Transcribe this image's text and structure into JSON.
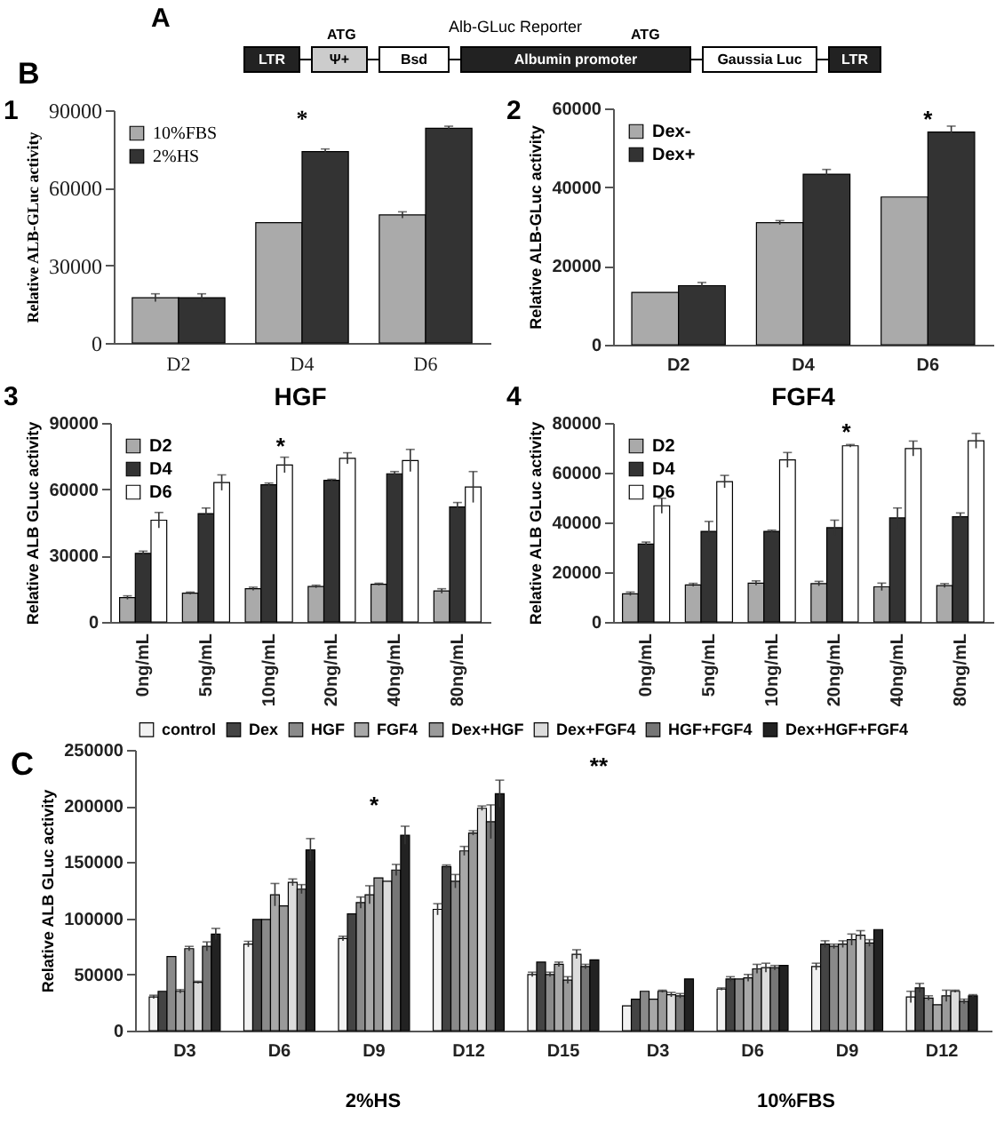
{
  "chart_data": [
    {
      "type": "other",
      "annotations": [
        "A",
        "B",
        "Alb-GLuc Reporter",
        "ATG",
        "ATG",
        "LTR",
        "Ψ+",
        "Bsd",
        "Albumin promoter",
        "Gaussia Luc",
        "LTR"
      ]
    },
    {
      "type": "bar",
      "ylabel": "Relative ALB-GLuc activity",
      "categories": [
        "D2",
        "D4",
        "D6"
      ],
      "ylim": [
        0,
        90000
      ],
      "yticks": [
        0,
        30000,
        60000,
        90000
      ],
      "legend": "top left",
      "annotations": [
        "1",
        "*"
      ],
      "series": [
        {
          "name": "10%FBS",
          "color": "#aaaaaa",
          "values": [
            17500,
            46500,
            49500
          ],
          "errors": [
            1500,
            null,
            1200
          ]
        },
        {
          "name": "2%HS",
          "color": "#333333",
          "values": [
            17500,
            74000,
            83000
          ],
          "errors": [
            1500,
            1000,
            800
          ]
        }
      ]
    },
    {
      "type": "bar",
      "ylabel": "Relative ALB-GLuc activity",
      "categories": [
        "D2",
        "D4",
        "D6"
      ],
      "ylim": [
        0,
        60000
      ],
      "yticks": [
        0,
        20000,
        40000,
        60000
      ],
      "legend": "top left",
      "annotations": [
        "2",
        "*"
      ],
      "series": [
        {
          "name": "Dex-",
          "color": "#aaaaaa",
          "values": [
            13300,
            31000,
            37500
          ],
          "errors": [
            null,
            500,
            null
          ]
        },
        {
          "name": "Dex+",
          "color": "#333333",
          "values": [
            15000,
            43300,
            54000
          ],
          "errors": [
            800,
            1200,
            1500
          ]
        }
      ]
    },
    {
      "type": "bar",
      "title": "HGF",
      "ylabel": "Relative ALB GLuc activity",
      "categories": [
        "0ng/mL",
        "5ng/mL",
        "10ng/mL",
        "20ng/mL",
        "40ng/mL",
        "80ng/mL"
      ],
      "ylim": [
        0,
        90000
      ],
      "yticks": [
        0,
        30000,
        60000,
        90000
      ],
      "legend": "top left",
      "annotations": [
        "3",
        "*"
      ],
      "series": [
        {
          "name": "D2",
          "color": "#aaaaaa",
          "values": [
            11000,
            13000,
            15000,
            16000,
            17000,
            14000
          ],
          "errors": [
            800,
            500,
            700,
            600,
            500,
            1000
          ]
        },
        {
          "name": "D4",
          "color": "#333333",
          "values": [
            31000,
            49000,
            62000,
            64000,
            67000,
            52000
          ],
          "errors": [
            1000,
            2500,
            800,
            500,
            1000,
            2000
          ]
        },
        {
          "name": "D6",
          "color": "#ffffff",
          "values": [
            46000,
            63000,
            71000,
            74000,
            73000,
            61000
          ],
          "errors": [
            3500,
            3500,
            3500,
            2500,
            5000,
            7000
          ]
        }
      ]
    },
    {
      "type": "bar",
      "title": "FGF4",
      "ylabel": "Relative ALB GLuc activity",
      "categories": [
        "0ng/mL",
        "5ng/mL",
        "10ng/mL",
        "20ng/mL",
        "40ng/mL",
        "80ng/mL"
      ],
      "ylim": [
        0,
        80000
      ],
      "yticks": [
        0,
        20000,
        40000,
        60000,
        80000
      ],
      "legend": "top left",
      "annotations": [
        "4",
        "*"
      ],
      "series": [
        {
          "name": "D2",
          "color": "#aaaaaa",
          "values": [
            11300,
            14900,
            15600,
            15400,
            14100,
            14600
          ],
          "errors": [
            700,
            600,
            900,
            900,
            1500,
            800
          ]
        },
        {
          "name": "D4",
          "color": "#333333",
          "values": [
            31300,
            36400,
            36400,
            37900,
            41800,
            42300
          ],
          "errors": [
            800,
            4000,
            500,
            3000,
            4000,
            1500
          ]
        },
        {
          "name": "D6",
          "color": "#ffffff",
          "values": [
            46700,
            56400,
            65100,
            70800,
            69700,
            72800
          ],
          "errors": [
            3000,
            2500,
            3000,
            500,
            3000,
            3000
          ]
        }
      ]
    },
    {
      "type": "bar",
      "ylabel": "Relative ALB GLuc activity",
      "categories": [
        "D3",
        "D6",
        "D9",
        "D12",
        "D15",
        "D3",
        "D6",
        "D9",
        "D12"
      ],
      "ylim": [
        0,
        250000
      ],
      "yticks": [
        0,
        50000,
        100000,
        150000,
        200000,
        250000
      ],
      "legend": "top",
      "annotations": [
        "C",
        "*",
        "**",
        "2%HS",
        "10%FBS"
      ],
      "series": [
        {
          "name": "control",
          "color": "#f2f2f2",
          "values": [
            30000,
            77000,
            82000,
            108000,
            50000,
            22000,
            37000,
            57000,
            30000
          ],
          "errors": [
            1500,
            2500,
            2000,
            5000,
            2000,
            null,
            1000,
            3000,
            5000
          ]
        },
        {
          "name": "Dex",
          "color": "#444444",
          "values": [
            35000,
            99000,
            104000,
            146000,
            61000,
            28000,
            46000,
            77000,
            38000
          ],
          "errors": [
            null,
            null,
            null,
            1500,
            null,
            null,
            2000,
            3000,
            4000
          ]
        },
        {
          "name": "HGF",
          "color": "#8a8a8a",
          "values": [
            66000,
            99000,
            114000,
            133000,
            50000,
            35000,
            46000,
            75000,
            29000
          ],
          "errors": [
            null,
            null,
            5000,
            6000,
            2000,
            null,
            null,
            2000,
            2000
          ]
        },
        {
          "name": "FGF4",
          "color": "#a8a8a8",
          "values": [
            35000,
            121000,
            121000,
            160000,
            59000,
            28000,
            47000,
            77000,
            23000
          ],
          "errors": [
            1500,
            10000,
            8000,
            4000,
            2000,
            null,
            3000,
            3000,
            null
          ]
        },
        {
          "name": "Dex+HGF",
          "color": "#9a9a9a",
          "values": [
            73000,
            111000,
            136000,
            176000,
            45000,
            35000,
            55000,
            81000,
            31000
          ],
          "errors": [
            2000,
            null,
            null,
            2000,
            3000,
            1000,
            4000,
            5000,
            5000
          ]
        },
        {
          "name": "Dex+FGF4",
          "color": "#dcdcdc",
          "values": [
            43000,
            132000,
            133000,
            198000,
            68000,
            32000,
            56000,
            85000,
            35000
          ],
          "errors": [
            1000,
            3000,
            null,
            2000,
            4000,
            2000,
            4000,
            4000,
            1000
          ]
        },
        {
          "name": "HGF+FGF4",
          "color": "#767676",
          "values": [
            75000,
            126000,
            143000,
            186000,
            57000,
            31000,
            56000,
            78000,
            26000
          ],
          "errors": [
            4000,
            4000,
            5000,
            15000,
            2000,
            2000,
            2000,
            3000,
            2000
          ]
        },
        {
          "name": "Dex+HGF+FGF4",
          "color": "#222222",
          "values": [
            86000,
            161000,
            174000,
            211000,
            63000,
            46000,
            58000,
            90000,
            31000
          ],
          "errors": [
            5000,
            10000,
            8000,
            12000,
            null,
            null,
            null,
            null,
            1000
          ]
        }
      ]
    }
  ]
}
